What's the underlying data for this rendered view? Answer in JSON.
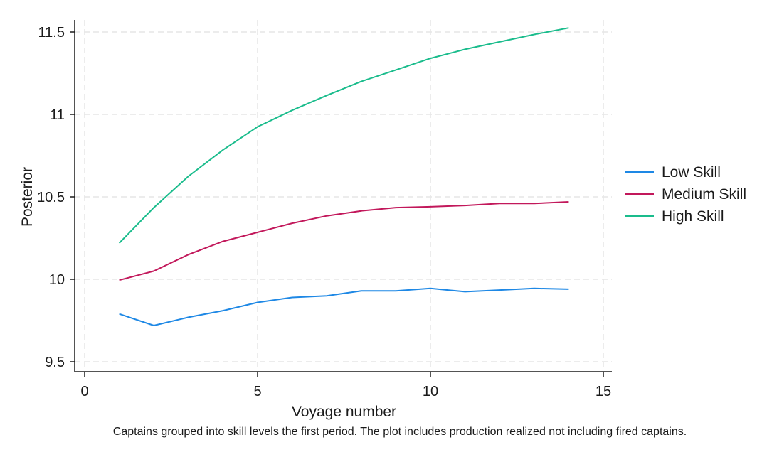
{
  "chart_data": {
    "type": "line",
    "xlabel": "Voyage number",
    "ylabel": "Posterior",
    "note": "Captains grouped into skill levels the first period. The plot includes production realized not including fired captains.",
    "xlim": [
      0,
      15
    ],
    "ylim": [
      9.5,
      11.5
    ],
    "xticks": [
      0,
      5,
      10,
      15
    ],
    "yticks": [
      9.5,
      10,
      10.5,
      11,
      11.5
    ],
    "xtick_labels": [
      "0",
      "5",
      "10",
      "15"
    ],
    "ytick_labels": [
      "9.5",
      "10",
      "10.5",
      "11",
      "11.5"
    ],
    "grid": true,
    "legend_position": "right",
    "x": [
      1,
      2,
      3,
      4,
      5,
      6,
      7,
      8,
      9,
      10,
      11,
      12,
      13,
      14
    ],
    "series": [
      {
        "name": "Low Skill",
        "color": "#1e88e5",
        "values": [
          9.79,
          9.72,
          9.77,
          9.81,
          9.86,
          9.89,
          9.9,
          9.93,
          9.93,
          9.945,
          9.925,
          9.935,
          9.945,
          9.94
        ]
      },
      {
        "name": "Medium Skill",
        "color": "#c2185b",
        "values": [
          9.995,
          10.05,
          10.15,
          10.23,
          10.285,
          10.34,
          10.385,
          10.415,
          10.435,
          10.44,
          10.448,
          10.46,
          10.46,
          10.47
        ]
      },
      {
        "name": "High Skill",
        "color": "#1abc8c",
        "values": [
          10.22,
          10.435,
          10.625,
          10.785,
          10.925,
          11.025,
          11.115,
          11.2,
          11.27,
          11.34,
          11.395,
          11.44,
          11.485,
          11.525
        ]
      }
    ]
  }
}
